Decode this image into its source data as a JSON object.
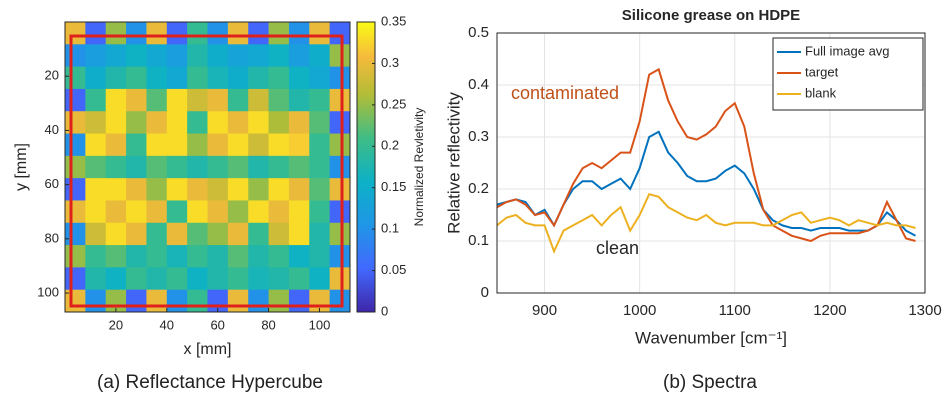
{
  "chart_data": [
    {
      "type": "heatmap",
      "xlabel": "x [mm]",
      "ylabel": "y [mm]",
      "caption": "(a) Reflectance Hypercube",
      "z": [
        [
          0.3,
          0.05,
          0.25,
          0.1,
          0.3,
          0.05,
          0.2,
          0.1,
          0.3,
          0.05,
          0.25,
          0.1,
          0.3,
          0.05
        ],
        [
          0.1,
          0.12,
          0.14,
          0.16,
          0.14,
          0.12,
          0.18,
          0.15,
          0.13,
          0.14,
          0.16,
          0.12,
          0.15,
          0.25
        ],
        [
          0.2,
          0.15,
          0.18,
          0.2,
          0.16,
          0.14,
          0.2,
          0.17,
          0.15,
          0.18,
          0.2,
          0.16,
          0.14,
          0.1
        ],
        [
          0.05,
          0.2,
          0.33,
          0.3,
          0.22,
          0.33,
          0.28,
          0.3,
          0.2,
          0.28,
          0.22,
          0.18,
          0.2,
          0.3
        ],
        [
          0.3,
          0.28,
          0.33,
          0.25,
          0.3,
          0.33,
          0.2,
          0.33,
          0.3,
          0.33,
          0.26,
          0.3,
          0.22,
          0.05
        ],
        [
          0.1,
          0.33,
          0.3,
          0.2,
          0.33,
          0.33,
          0.25,
          0.3,
          0.33,
          0.28,
          0.33,
          0.32,
          0.2,
          0.25
        ],
        [
          0.25,
          0.22,
          0.2,
          0.18,
          0.22,
          0.2,
          0.18,
          0.2,
          0.22,
          0.18,
          0.2,
          0.22,
          0.2,
          0.1
        ],
        [
          0.05,
          0.33,
          0.33,
          0.3,
          0.25,
          0.33,
          0.3,
          0.28,
          0.33,
          0.25,
          0.33,
          0.3,
          0.22,
          0.3
        ],
        [
          0.3,
          0.33,
          0.3,
          0.33,
          0.3,
          0.2,
          0.33,
          0.3,
          0.25,
          0.33,
          0.3,
          0.33,
          0.2,
          0.05
        ],
        [
          0.1,
          0.28,
          0.33,
          0.3,
          0.2,
          0.3,
          0.22,
          0.25,
          0.3,
          0.2,
          0.28,
          0.33,
          0.18,
          0.25
        ],
        [
          0.25,
          0.2,
          0.22,
          0.18,
          0.2,
          0.17,
          0.2,
          0.18,
          0.22,
          0.18,
          0.2,
          0.16,
          0.18,
          0.1
        ],
        [
          0.05,
          0.18,
          0.16,
          0.2,
          0.18,
          0.2,
          0.16,
          0.18,
          0.2,
          0.17,
          0.18,
          0.2,
          0.16,
          0.3
        ],
        [
          0.3,
          0.1,
          0.25,
          0.05,
          0.3,
          0.1,
          0.2,
          0.05,
          0.3,
          0.1,
          0.25,
          0.05,
          0.3,
          0.1
        ]
      ],
      "xlim": [
        0,
        112
      ],
      "ylim": [
        107,
        0
      ],
      "xticks": [
        20,
        40,
        60,
        80,
        100
      ],
      "yticks": [
        20,
        40,
        60,
        80,
        100
      ],
      "colorbar": {
        "label": "Normalized Revletivity",
        "lim": [
          0,
          0.35
        ],
        "ticks": [
          0,
          0.05,
          0.1,
          0.15,
          0.2,
          0.25,
          0.3,
          0.35
        ]
      }
    },
    {
      "type": "line",
      "title": "Silicone grease on HDPE",
      "xlabel": "Wavenumber [cm⁻¹]",
      "ylabel": "Relative reflectivity",
      "caption": "(b) Spectra",
      "x": [
        850,
        860,
        870,
        880,
        890,
        900,
        910,
        920,
        930,
        940,
        950,
        960,
        970,
        980,
        990,
        1000,
        1010,
        1020,
        1030,
        1040,
        1050,
        1060,
        1070,
        1080,
        1090,
        1100,
        1110,
        1120,
        1130,
        1140,
        1150,
        1160,
        1170,
        1180,
        1190,
        1200,
        1210,
        1220,
        1230,
        1240,
        1250,
        1260,
        1270,
        1280,
        1290
      ],
      "series": [
        {
          "name": "Full image avg",
          "color": "#0072bd",
          "values": [
            0.17,
            0.175,
            0.18,
            0.175,
            0.15,
            0.16,
            0.13,
            0.17,
            0.2,
            0.215,
            0.215,
            0.2,
            0.21,
            0.22,
            0.2,
            0.24,
            0.3,
            0.31,
            0.27,
            0.25,
            0.225,
            0.215,
            0.215,
            0.22,
            0.235,
            0.245,
            0.23,
            0.2,
            0.16,
            0.14,
            0.13,
            0.125,
            0.125,
            0.12,
            0.125,
            0.125,
            0.125,
            0.12,
            0.12,
            0.12,
            0.13,
            0.155,
            0.14,
            0.12,
            0.11
          ]
        },
        {
          "name": "target",
          "color": "#d95319",
          "values": [
            0.165,
            0.175,
            0.18,
            0.17,
            0.15,
            0.155,
            0.13,
            0.17,
            0.21,
            0.24,
            0.25,
            0.24,
            0.255,
            0.27,
            0.27,
            0.33,
            0.42,
            0.43,
            0.37,
            0.33,
            0.3,
            0.295,
            0.305,
            0.32,
            0.35,
            0.365,
            0.32,
            0.23,
            0.16,
            0.13,
            0.12,
            0.11,
            0.105,
            0.1,
            0.11,
            0.115,
            0.115,
            0.115,
            0.115,
            0.12,
            0.13,
            0.175,
            0.14,
            0.105,
            0.1
          ]
        },
        {
          "name": "blank",
          "color": "#edb120",
          "values": [
            0.13,
            0.145,
            0.15,
            0.135,
            0.13,
            0.13,
            0.08,
            0.12,
            0.13,
            0.14,
            0.15,
            0.13,
            0.15,
            0.165,
            0.12,
            0.15,
            0.19,
            0.185,
            0.165,
            0.155,
            0.145,
            0.14,
            0.15,
            0.135,
            0.13,
            0.135,
            0.135,
            0.135,
            0.13,
            0.13,
            0.14,
            0.15,
            0.155,
            0.135,
            0.14,
            0.145,
            0.14,
            0.13,
            0.14,
            0.135,
            0.13,
            0.135,
            0.13,
            0.13,
            0.125
          ]
        }
      ],
      "xlim": [
        850,
        1300
      ],
      "ylim": [
        0,
        0.5
      ],
      "xticks": [
        900,
        1000,
        1100,
        1200,
        1300
      ],
      "yticks": [
        0,
        0.1,
        0.2,
        0.3,
        0.4,
        0.5
      ],
      "grid": true,
      "legend": "upper right",
      "annotations": [
        {
          "text": "contaminated",
          "color": "#c0501a"
        },
        {
          "text": "clean",
          "color": "#262626"
        }
      ]
    }
  ]
}
